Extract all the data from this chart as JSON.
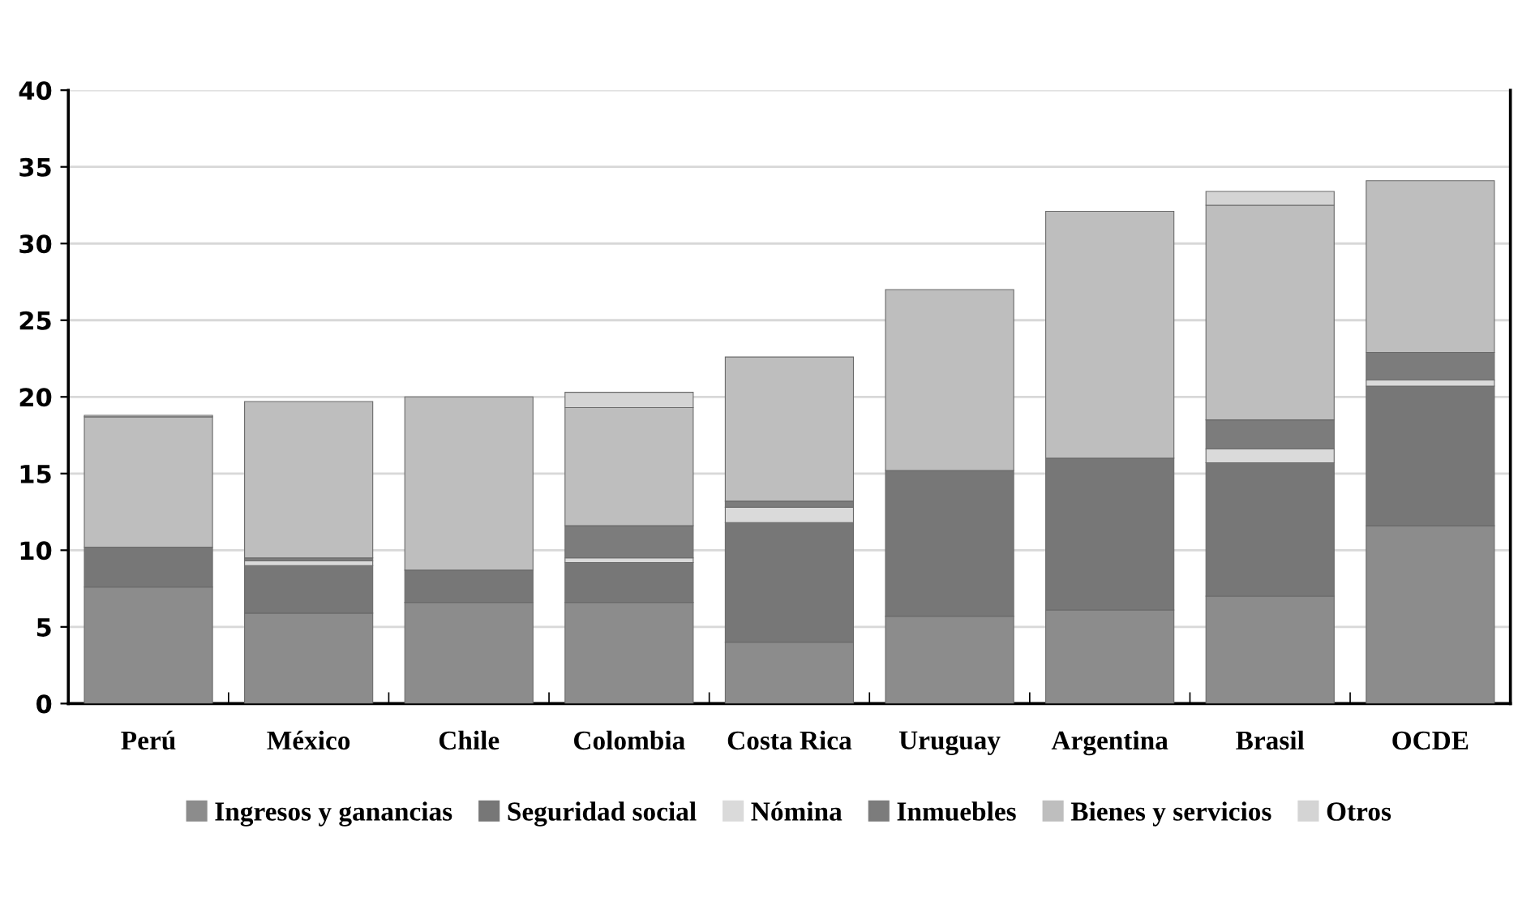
{
  "chart_data": {
    "type": "bar",
    "stacked": true,
    "categories": [
      "Perú",
      "México",
      "Chile",
      "Colombia",
      "Costa Rica",
      "Uruguay",
      "Argentina",
      "Brasil",
      "OCDE"
    ],
    "series": [
      {
        "name": "Ingresos y ganancias",
        "color": "#8c8c8c",
        "values": [
          7.6,
          5.9,
          6.6,
          6.6,
          4.0,
          5.7,
          6.1,
          7.0,
          11.6
        ]
      },
      {
        "name": "Seguridad social",
        "color": "#777777",
        "values": [
          2.6,
          3.1,
          2.1,
          2.6,
          7.8,
          9.5,
          9.9,
          8.7,
          9.1
        ]
      },
      {
        "name": "Nómina",
        "color": "#dadada",
        "values": [
          null,
          0.3,
          null,
          0.3,
          1.0,
          null,
          null,
          0.9,
          0.4
        ]
      },
      {
        "name": "Inmuebles",
        "color": "#7c7c7c",
        "values": [
          null,
          0.2,
          null,
          2.1,
          0.4,
          null,
          null,
          1.9,
          1.8
        ]
      },
      {
        "name": "Bienes y servicios",
        "color": "#bebebe",
        "values": [
          8.5,
          10.2,
          11.3,
          7.7,
          9.4,
          11.8,
          16.1,
          14.0,
          11.2
        ]
      },
      {
        "name": "Otros",
        "color": "#d4d4d4",
        "values": [
          0.1,
          null,
          null,
          1.0,
          null,
          null,
          null,
          0.9,
          null
        ]
      }
    ],
    "ylim": [
      0,
      40
    ],
    "yticks": [
      0,
      5,
      10,
      15,
      20,
      25,
      30,
      35,
      40
    ],
    "grid": "y",
    "legend": "bottom"
  }
}
